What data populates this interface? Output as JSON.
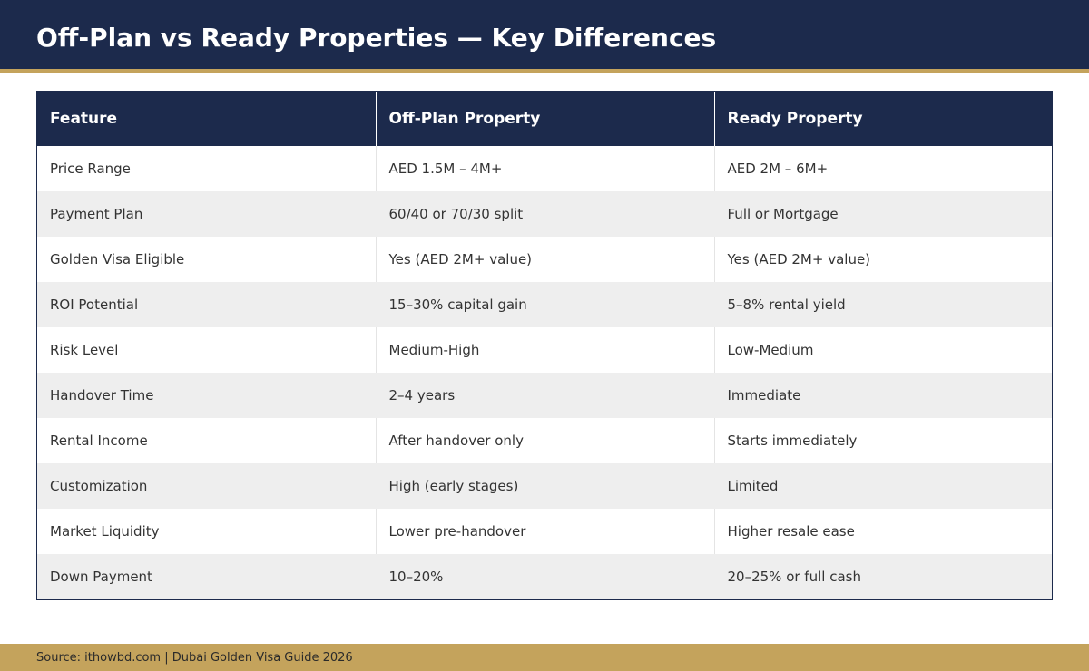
{
  "header": {
    "title": "Off-Plan vs Ready Properties — Key Differences"
  },
  "table": {
    "columns": [
      "Feature",
      "Off-Plan Property",
      "Ready Property"
    ],
    "rows": [
      [
        "Price Range",
        "AED 1.5M – 4M+",
        "AED 2M – 6M+"
      ],
      [
        "Payment Plan",
        "60/40 or 70/30 split",
        "Full or Mortgage"
      ],
      [
        "Golden Visa Eligible",
        "Yes (AED 2M+ value)",
        "Yes (AED 2M+ value)"
      ],
      [
        "ROI Potential",
        "15–30% capital gain",
        "5–8% rental yield"
      ],
      [
        "Risk Level",
        "Medium-High",
        "Low-Medium"
      ],
      [
        "Handover Time",
        "2–4 years",
        "Immediate"
      ],
      [
        "Rental Income",
        "After handover only",
        "Starts immediately"
      ],
      [
        "Customization",
        "High (early stages)",
        "Limited"
      ],
      [
        "Market Liquidity",
        "Lower pre-handover",
        "Higher resale ease"
      ],
      [
        "Down Payment",
        "10–20%",
        "20–25% or full cash"
      ]
    ]
  },
  "footer": {
    "source": "Source: ithowbd.com | Dubai Golden Visa Guide 2026"
  },
  "colors": {
    "navy": "#1c2a4c",
    "gold": "#c4a35c",
    "row_alt": "#eeeeee"
  }
}
